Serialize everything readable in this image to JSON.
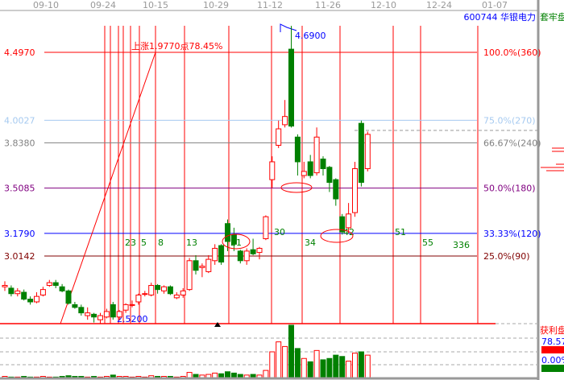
{
  "header": {
    "dates": [
      "09-10",
      "09-24",
      "10-15",
      "10-29",
      "11-12",
      "11-26",
      "12-10",
      "12-24",
      "01-07"
    ],
    "stock_code": "600744",
    "stock_name": "华银电力",
    "right_panel_title": "套牢盘"
  },
  "levels": [
    {
      "price": "4.4970",
      "pct": "100.0%(360)",
      "color": "#ff0000"
    },
    {
      "price": "4.0027",
      "pct": "75.0%(270)",
      "color": "#a6caf0"
    },
    {
      "price": "3.8380",
      "pct": "66.67%(240)",
      "color": "#808080"
    },
    {
      "price": "3.5085",
      "pct": "50.0%(180)",
      "color": "#800080"
    },
    {
      "price": "3.1790",
      "pct": "33.33%(120)",
      "color": "#0000ff"
    },
    {
      "price": "3.0142",
      "pct": "25.0%(90)",
      "color": "#800000"
    }
  ],
  "annotations": {
    "rise_text": "上涨1.9770点78.45%",
    "high_label": "4.6900",
    "low_label": "2.5200",
    "fib_numbers": [
      "23",
      "5",
      "8",
      "13",
      "21",
      "30",
      "34",
      "42",
      "51",
      "55",
      "336"
    ]
  },
  "profit_panel": {
    "title": "获利盘",
    "profit_pct": "78.57%",
    "profit_fraction": 0.7857,
    "trapped_pct": "0.00%",
    "colors": {
      "profit": "#ff0000",
      "trapped": "#008000"
    }
  },
  "chart_data": {
    "type": "candlestick",
    "price_range": [
      2.52,
      4.69
    ],
    "candles": [
      [
        2.79,
        2.8,
        2.83,
        2.76
      ],
      [
        2.78,
        2.74,
        2.8,
        2.72
      ],
      [
        2.74,
        2.76,
        2.78,
        2.72
      ],
      [
        2.75,
        2.7,
        2.77,
        2.69
      ],
      [
        2.7,
        2.68,
        2.72,
        2.66
      ],
      [
        2.68,
        2.72,
        2.75,
        2.67
      ],
      [
        2.73,
        2.77,
        2.79,
        2.72
      ],
      [
        2.8,
        2.82,
        2.84,
        2.79
      ],
      [
        2.82,
        2.8,
        2.84,
        2.78
      ],
      [
        2.79,
        2.76,
        2.81,
        2.75
      ],
      [
        2.76,
        2.67,
        2.77,
        2.66
      ],
      [
        2.66,
        2.64,
        2.68,
        2.63
      ],
      [
        2.64,
        2.6,
        2.66,
        2.58
      ],
      [
        2.58,
        2.6,
        2.64,
        2.55
      ],
      [
        2.59,
        2.57,
        2.6,
        2.53
      ],
      [
        2.55,
        2.58,
        2.6,
        2.52
      ],
      [
        2.57,
        2.61,
        2.63,
        2.56
      ],
      [
        2.66,
        2.57,
        2.68,
        2.55
      ],
      [
        2.57,
        2.61,
        2.62,
        2.55
      ],
      [
        2.62,
        2.66,
        2.67,
        2.6
      ],
      [
        2.66,
        2.66,
        2.69,
        2.64
      ],
      [
        2.68,
        2.73,
        2.74,
        2.66
      ],
      [
        2.74,
        2.74,
        2.76,
        2.72
      ],
      [
        2.73,
        2.8,
        2.82,
        2.72
      ],
      [
        2.8,
        2.77,
        2.81,
        2.74
      ],
      [
        2.76,
        2.79,
        2.8,
        2.74
      ],
      [
        2.79,
        2.74,
        2.8,
        2.73
      ],
      [
        2.71,
        2.73,
        2.75,
        2.7
      ],
      [
        2.73,
        2.76,
        2.78,
        2.71
      ],
      [
        2.77,
        2.98,
        3.0,
        2.76
      ],
      [
        2.98,
        2.91,
        3.02,
        2.88
      ],
      [
        2.93,
        2.94,
        2.96,
        2.86
      ],
      [
        2.9,
        2.99,
        3.02,
        2.89
      ],
      [
        2.98,
        3.07,
        3.1,
        2.95
      ],
      [
        3.09,
        2.97,
        3.1,
        2.95
      ],
      [
        3.25,
        3.12,
        3.28,
        3.05
      ],
      [
        3.17,
        3.1,
        3.22,
        3.05
      ],
      [
        3.05,
        2.98,
        3.06,
        2.96
      ],
      [
        2.98,
        3.05,
        3.07,
        2.95
      ],
      [
        3.06,
        3.03,
        3.14,
        3.02
      ],
      [
        3.04,
        3.07,
        3.08,
        2.99
      ],
      [
        3.14,
        3.3,
        3.31,
        3.13
      ],
      [
        3.57,
        3.7,
        3.74,
        3.51
      ],
      [
        3.82,
        3.94,
        4.0,
        3.8
      ],
      [
        3.97,
        4.03,
        4.15,
        3.95
      ],
      [
        4.52,
        3.96,
        4.69,
        3.95
      ],
      [
        3.88,
        3.7,
        3.9,
        3.6
      ],
      [
        3.6,
        3.63,
        3.7,
        3.58
      ],
      [
        3.7,
        3.6,
        3.75,
        3.58
      ],
      [
        3.62,
        3.88,
        3.95,
        3.6
      ],
      [
        3.72,
        3.65,
        3.74,
        3.6
      ],
      [
        3.66,
        3.55,
        3.67,
        3.48
      ],
      [
        3.57,
        3.43,
        3.58,
        3.38
      ],
      [
        3.3,
        3.19,
        3.32,
        3.17
      ],
      [
        3.22,
        3.32,
        3.4,
        3.18
      ],
      [
        3.33,
        3.65,
        3.7,
        3.3
      ],
      [
        3.98,
        3.55,
        4.0,
        3.52
      ],
      [
        3.65,
        3.9,
        3.92,
        3.63
      ]
    ],
    "volumes": [
      3,
      2,
      2,
      3,
      2,
      2,
      3,
      2,
      2,
      3,
      4,
      3,
      3,
      2,
      3,
      2,
      3,
      5,
      3,
      3,
      2,
      3,
      2,
      4,
      3,
      3,
      3,
      2,
      3,
      9,
      6,
      5,
      6,
      8,
      7,
      10,
      8,
      6,
      5,
      6,
      5,
      12,
      40,
      55,
      48,
      80,
      45,
      30,
      25,
      42,
      28,
      30,
      35,
      33,
      26,
      38,
      40,
      35
    ]
  }
}
